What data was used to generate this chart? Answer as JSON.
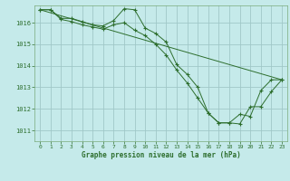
{
  "title": "Graphe pression niveau de la mer (hPa)",
  "background_color": "#c5eaea",
  "grid_color": "#a0c8c8",
  "line_color": "#2d6e2d",
  "spine_color": "#7aaa7a",
  "xlim": [
    -0.5,
    23.5
  ],
  "ylim": [
    1010.5,
    1016.8
  ],
  "yticks": [
    1011,
    1012,
    1013,
    1014,
    1015,
    1016
  ],
  "xticks": [
    0,
    1,
    2,
    3,
    4,
    5,
    6,
    7,
    8,
    9,
    10,
    11,
    12,
    13,
    14,
    15,
    16,
    17,
    18,
    19,
    20,
    21,
    22,
    23
  ],
  "series_main1": {
    "x": [
      0,
      1,
      2,
      3,
      4,
      5,
      6,
      7,
      8,
      9,
      10,
      11,
      12,
      13,
      14,
      15,
      16,
      17,
      18,
      19,
      20,
      21,
      22,
      23
    ],
    "y": [
      1016.6,
      1016.6,
      1016.2,
      1016.2,
      1016.05,
      1015.9,
      1015.85,
      1016.1,
      1016.65,
      1016.6,
      1015.75,
      1015.5,
      1015.1,
      1014.05,
      1013.6,
      1013.0,
      1011.8,
      1011.35,
      1011.35,
      1011.3,
      1012.1,
      1012.1,
      1012.8,
      1013.35
    ]
  },
  "series_main2": {
    "x": [
      0,
      1,
      2,
      3,
      4,
      5,
      6,
      7,
      8,
      9,
      10,
      11,
      12,
      13,
      14,
      15,
      16,
      17,
      18,
      19,
      20,
      21,
      22,
      23
    ],
    "y": [
      1016.6,
      1016.6,
      1016.15,
      1016.05,
      1015.9,
      1015.8,
      1015.7,
      1015.9,
      1016.0,
      1015.65,
      1015.4,
      1015.0,
      1014.5,
      1013.8,
      1013.2,
      1012.5,
      1011.8,
      1011.35,
      1011.35,
      1011.75,
      1011.65,
      1012.85,
      1013.35,
      1013.35
    ]
  },
  "series_trend": {
    "x": [
      0,
      23
    ],
    "y": [
      1016.6,
      1013.35
    ]
  }
}
